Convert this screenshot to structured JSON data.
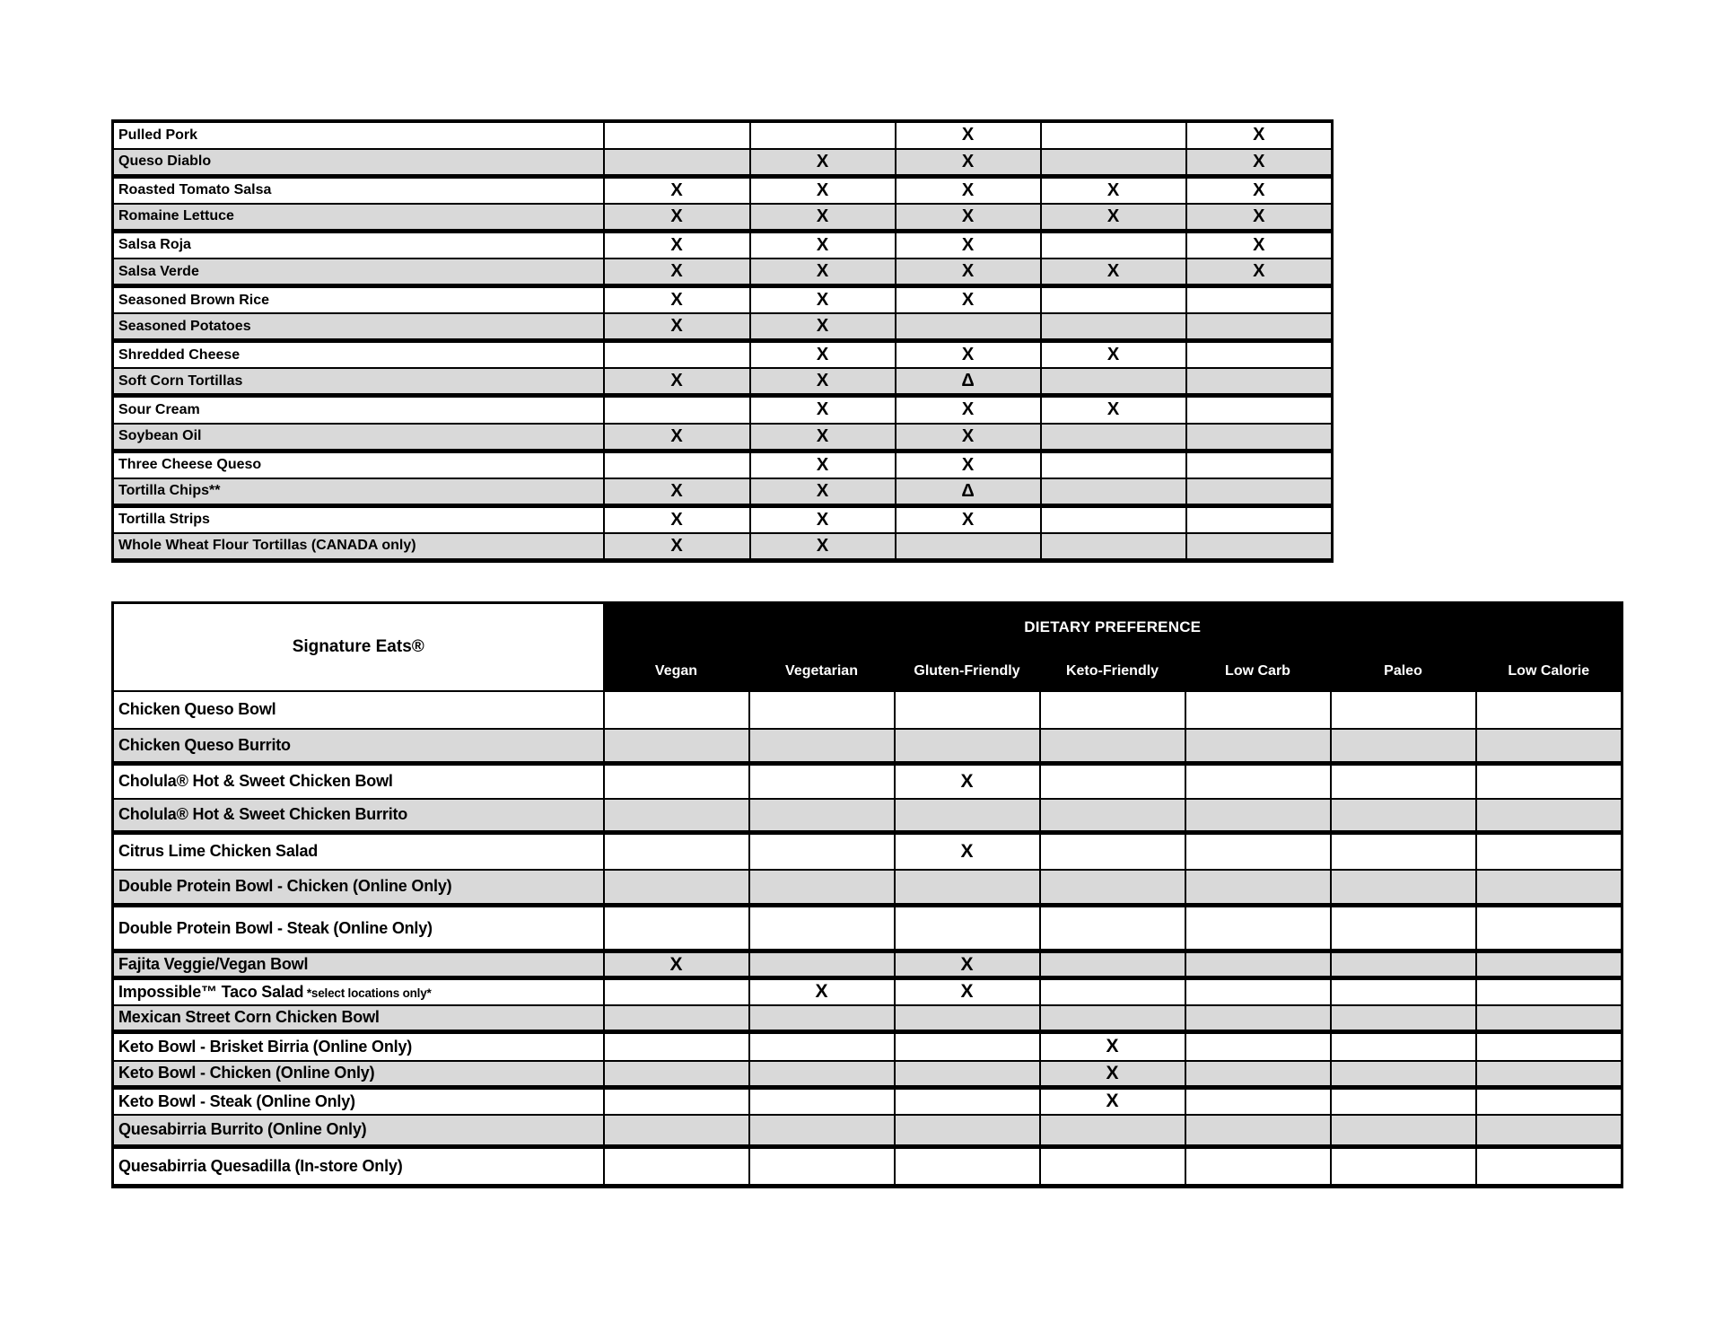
{
  "colors": {
    "page_background": "#ffffff",
    "alt_row_fill": "#d9d9d9",
    "header_fill": "#000000",
    "header_text": "#ffffff",
    "border": "#000000",
    "text": "#000000"
  },
  "marks": {
    "x": "X",
    "delta": "Δ"
  },
  "ingredients_table": {
    "rows": [
      {
        "name": "Pulled Pork",
        "marks": [
          "",
          "",
          "X",
          "",
          "X"
        ]
      },
      {
        "name": "Queso Diablo",
        "marks": [
          "",
          "X",
          "X",
          "",
          "X"
        ]
      },
      {
        "name": "Roasted Tomato Salsa",
        "marks": [
          "X",
          "X",
          "X",
          "X",
          "X"
        ]
      },
      {
        "name": "Romaine Lettuce",
        "marks": [
          "X",
          "X",
          "X",
          "X",
          "X"
        ]
      },
      {
        "name": "Salsa Roja",
        "marks": [
          "X",
          "X",
          "X",
          "",
          "X"
        ]
      },
      {
        "name": "Salsa Verde",
        "marks": [
          "X",
          "X",
          "X",
          "X",
          "X"
        ]
      },
      {
        "name": "Seasoned Brown Rice",
        "marks": [
          "X",
          "X",
          "X",
          "",
          ""
        ]
      },
      {
        "name": "Seasoned Potatoes",
        "marks": [
          "X",
          "X",
          "",
          "",
          ""
        ]
      },
      {
        "name": "Shredded Cheese",
        "marks": [
          "",
          "X",
          "X",
          "X",
          ""
        ]
      },
      {
        "name": "Soft Corn Tortillas",
        "marks": [
          "X",
          "X",
          "Δ",
          "",
          ""
        ]
      },
      {
        "name": "Sour Cream",
        "marks": [
          "",
          "X",
          "X",
          "X",
          ""
        ]
      },
      {
        "name": "Soybean Oil",
        "marks": [
          "X",
          "X",
          "X",
          "",
          ""
        ]
      },
      {
        "name": "Three Cheese Queso",
        "marks": [
          "",
          "X",
          "X",
          "",
          ""
        ]
      },
      {
        "name": "Tortilla Chips**",
        "marks": [
          "X",
          "X",
          "Δ",
          "",
          ""
        ]
      },
      {
        "name": "Tortilla Strips",
        "marks": [
          "X",
          "X",
          "X",
          "",
          ""
        ]
      },
      {
        "name": "Whole Wheat Flour Tortillas (CANADA only)",
        "marks": [
          "X",
          "X",
          "",
          "",
          ""
        ]
      }
    ]
  },
  "signature_eats_table": {
    "name_header": "Signature Eats®",
    "group_header": "DIETARY PREFERENCE",
    "columns": [
      "Vegan",
      "Vegetarian",
      "Gluten-Friendly",
      "Keto-Friendly",
      "Low Carb",
      "Paleo",
      "Low Calorie"
    ],
    "rows": [
      {
        "name": "Chicken Queso Bowl",
        "marks": [
          "",
          "",
          "",
          "",
          "",
          "",
          ""
        ]
      },
      {
        "name": "Chicken Queso Burrito",
        "marks": [
          "",
          "",
          "",
          "",
          "",
          "",
          ""
        ]
      },
      {
        "name": "Cholula® Hot & Sweet Chicken Bowl",
        "marks": [
          "",
          "",
          "X",
          "",
          "",
          "",
          ""
        ]
      },
      {
        "name": "Cholula® Hot & Sweet Chicken Burrito",
        "marks": [
          "",
          "",
          "",
          "",
          "",
          "",
          ""
        ]
      },
      {
        "name": "Citrus Lime Chicken Salad",
        "marks": [
          "",
          "",
          "X",
          "",
          "",
          "",
          ""
        ]
      },
      {
        "name": "Double Protein Bowl - Chicken (Online Only)",
        "marks": [
          "",
          "",
          "",
          "",
          "",
          "",
          ""
        ]
      },
      {
        "name": "Double Protein Bowl - Steak  (Online Only)",
        "marks": [
          "",
          "",
          "",
          "",
          "",
          "",
          ""
        ]
      },
      {
        "name": "Fajita Veggie/Vegan Bowl",
        "marks": [
          "X",
          "",
          "X",
          "",
          "",
          "",
          ""
        ]
      },
      {
        "name": "Impossible™ Taco Salad",
        "note": "*select locations only*",
        "marks": [
          "",
          "X",
          "X",
          "",
          "",
          "",
          ""
        ]
      },
      {
        "name": "Mexican Street Corn Chicken Bowl",
        "marks": [
          "",
          "",
          "",
          "",
          "",
          "",
          ""
        ]
      },
      {
        "name": "Keto Bowl - Brisket Birria (Online Only)",
        "marks": [
          "",
          "",
          "",
          "X",
          "",
          "",
          ""
        ]
      },
      {
        "name": "Keto Bowl - Chicken (Online Only)",
        "marks": [
          "",
          "",
          "",
          "X",
          "",
          "",
          ""
        ]
      },
      {
        "name": "Keto Bowl - Steak (Online Only)",
        "marks": [
          "",
          "",
          "",
          "X",
          "",
          "",
          ""
        ]
      },
      {
        "name": "Quesabirria Burrito (Online Only)",
        "marks": [
          "",
          "",
          "",
          "",
          "",
          "",
          ""
        ]
      },
      {
        "name": "Quesabirria Quesadilla (In-store Only)",
        "marks": [
          "",
          "",
          "",
          "",
          "",
          "",
          ""
        ]
      }
    ]
  }
}
